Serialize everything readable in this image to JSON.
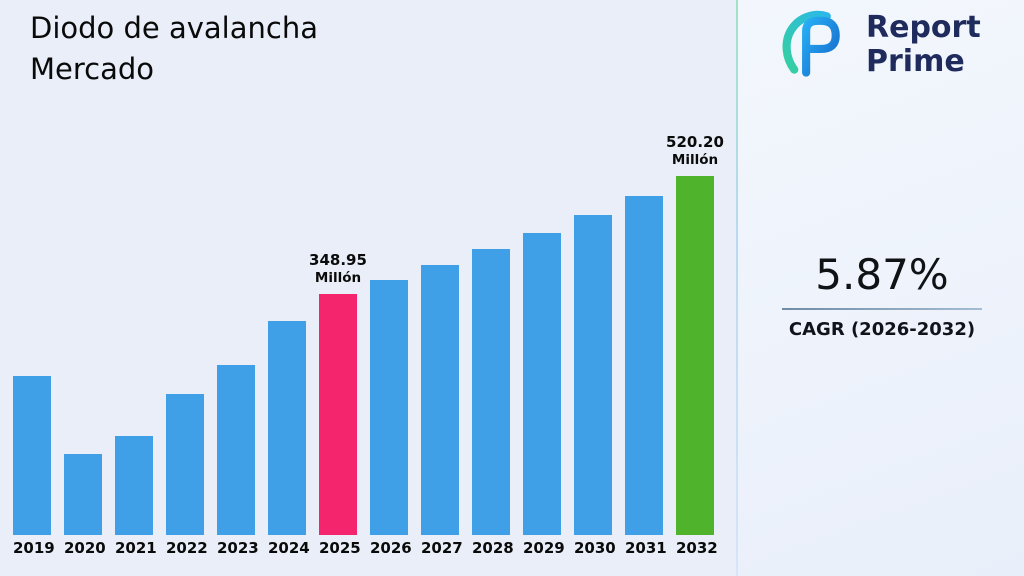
{
  "page": {
    "background": "#E9EEF8"
  },
  "header": {
    "title_line1": "Diodo de avalancha",
    "title_line2": "Mercado"
  },
  "logo": {
    "name_line1": "Report",
    "name_line2": "Prime",
    "text_color": "#1E2B5C"
  },
  "stats": {
    "cagr_value": "5.87%",
    "cagr_label": "CAGR (2026-2032)"
  },
  "chart_data": {
    "type": "bar",
    "title": "Diodo de avalancha Mercado",
    "unit": "Millón",
    "categories": [
      "2019",
      "2020",
      "2021",
      "2022",
      "2023",
      "2024",
      "2025",
      "2026",
      "2027",
      "2028",
      "2029",
      "2030",
      "2031",
      "2032"
    ],
    "values": [
      230,
      118,
      144,
      204,
      247,
      310,
      348.95,
      369.4,
      391.1,
      414.0,
      438.3,
      464.1,
      491.3,
      520.2
    ],
    "bar_color": "#3FA0E8",
    "annotations": {
      "2025": {
        "value_label": "348.95",
        "unit_label": "Millón",
        "color": "#F5256D"
      },
      "2032": {
        "value_label": "520.20",
        "unit_label": "Millón",
        "color": "#4FB32B"
      }
    },
    "ylim": [
      0,
      560
    ],
    "grid": false,
    "legend": false,
    "x_axis_labels_visible": true,
    "y_axis_visible": false
  }
}
